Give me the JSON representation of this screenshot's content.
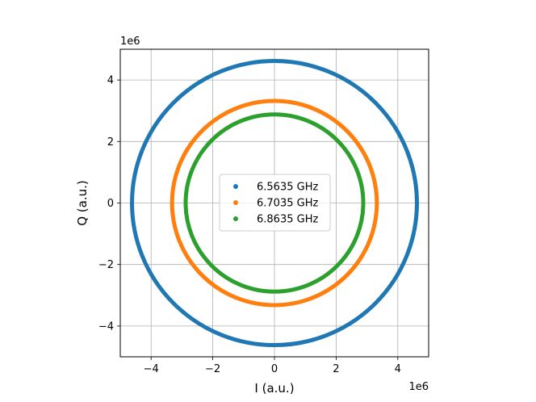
{
  "chart_data": {
    "type": "scatter",
    "xlabel": "I (a.u.)",
    "ylabel": "Q (a.u.)",
    "x_offset_text": "1e6",
    "y_offset_text": "1e6",
    "xlim": [
      -5.0,
      5.0
    ],
    "ylim": [
      -5.0,
      5.0
    ],
    "x_ticks": [
      -4,
      -2,
      0,
      2,
      4
    ],
    "y_ticks": [
      -4,
      -2,
      0,
      2,
      4
    ],
    "x_tick_labels": [
      "−4",
      "−2",
      "0",
      "2",
      "4"
    ],
    "y_tick_labels": [
      "−4",
      "−2",
      "0",
      "2",
      "4"
    ],
    "grid": true,
    "legend_position": "center",
    "series": [
      {
        "name": "6.5635 GHz",
        "color": "#1f77b4",
        "center": [
          0.0,
          0.0
        ],
        "radius": 4.62
      },
      {
        "name": "6.7035 GHz",
        "color": "#ff7f0e",
        "center": [
          0.0,
          0.0
        ],
        "radius": 3.32
      },
      {
        "name": "6.8635 GHz",
        "color": "#2ca02c",
        "center": [
          0.0,
          0.0
        ],
        "radius": 2.88
      }
    ]
  }
}
